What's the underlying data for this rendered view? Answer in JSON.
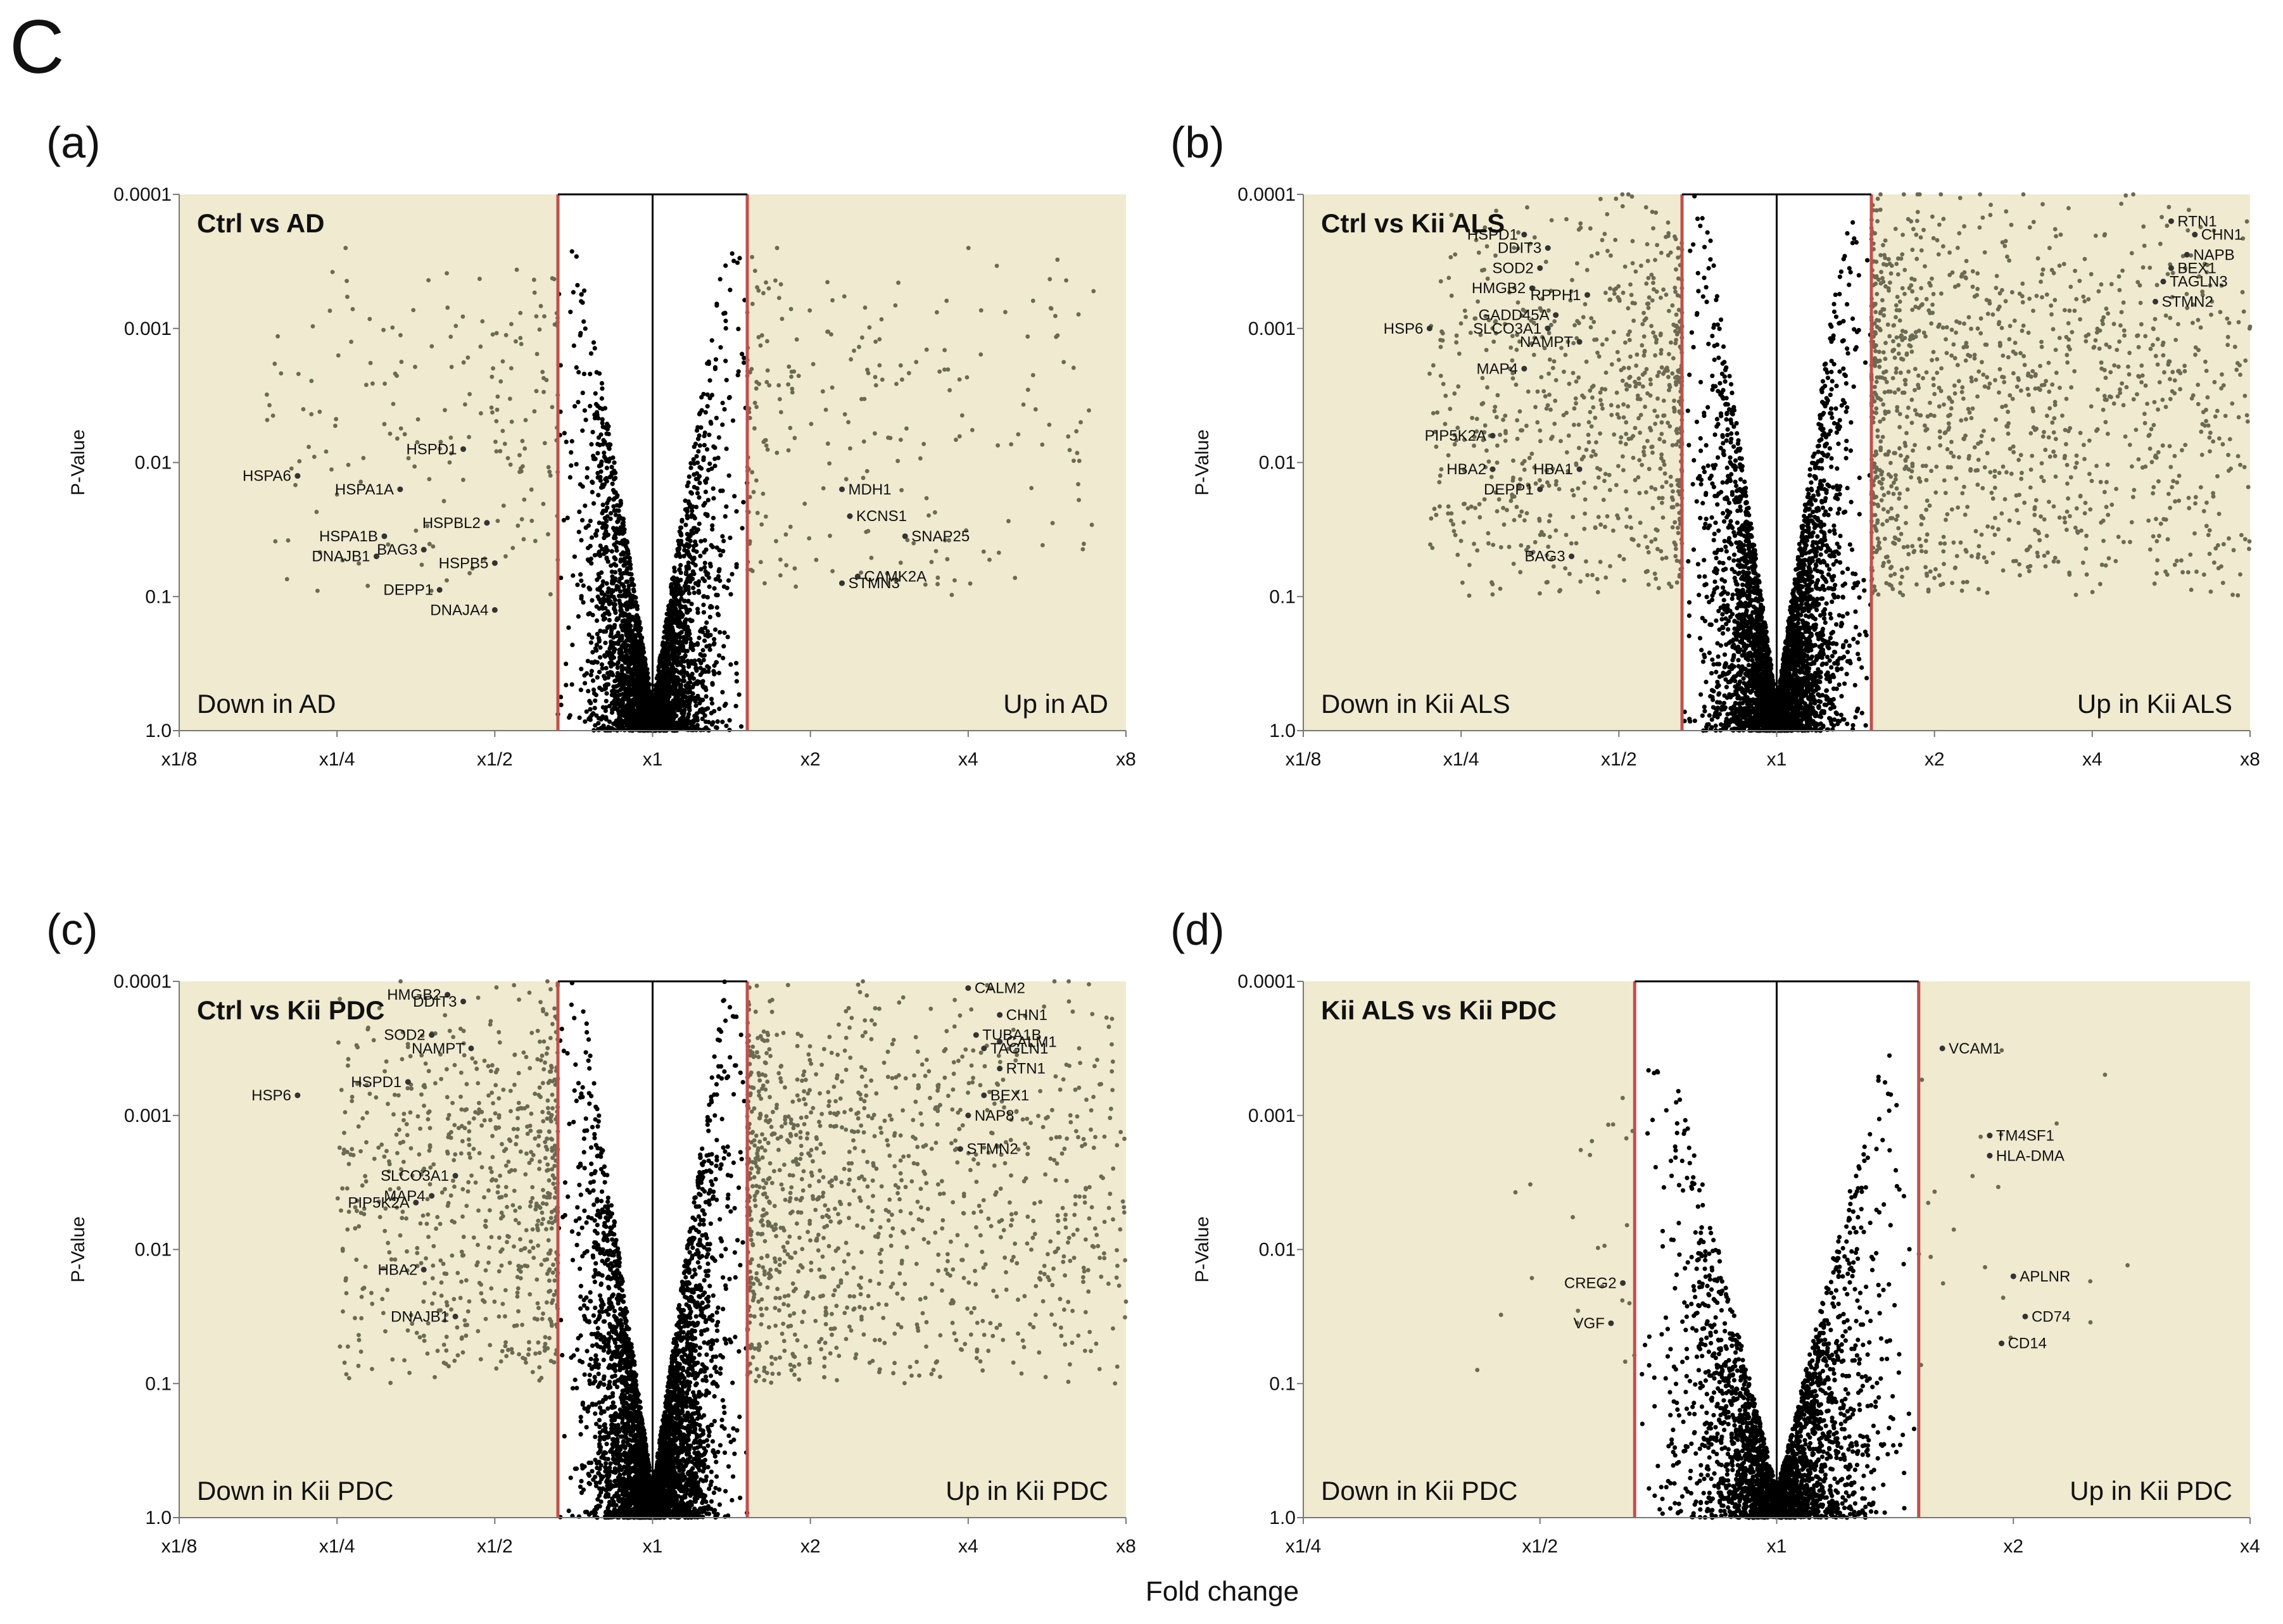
{
  "figure_label": "C",
  "x_label": "Fold change",
  "chart_data": [
    {
      "type": "scatter",
      "panel": "(a)",
      "title": "Ctrl vs AD",
      "xlabel": "Fold change",
      "ylabel": "P-Value",
      "x_scale": "log2",
      "y_scale": "log10 reversed",
      "xlim_log2": [
        -3,
        3
      ],
      "x_ticks": [
        {
          "v": -3,
          "label": "x1/8"
        },
        {
          "v": -2,
          "label": "x1/4"
        },
        {
          "v": -1,
          "label": "x1/2"
        },
        {
          "v": 0,
          "label": "x1"
        },
        {
          "v": 1,
          "label": "x2"
        },
        {
          "v": 2,
          "label": "x4"
        },
        {
          "v": 3,
          "label": "x8"
        }
      ],
      "y_ticks": [
        {
          "v": 0,
          "label": "1.0"
        },
        {
          "v": 1,
          "label": "0.1"
        },
        {
          "v": 2,
          "label": "0.01"
        },
        {
          "v": 3,
          "label": "0.001"
        },
        {
          "v": 4,
          "label": "0.0001"
        }
      ],
      "thresholds_log2": [
        -0.6,
        0.6
      ],
      "down_label": "Down in AD",
      "up_label": "Up in AD",
      "cloud": {
        "n_inner": 3200,
        "n_outer": 420,
        "spread_left": 1.9,
        "spread_right": 2.2,
        "max_y": 3.6
      },
      "annotations": [
        {
          "gene": "HSPA6",
          "x": -2.25,
          "y": 1.9
        },
        {
          "gene": "HSPD1",
          "x": -1.2,
          "y": 2.1
        },
        {
          "gene": "HSPA1A",
          "x": -1.6,
          "y": 1.8
        },
        {
          "gene": "HSPBL2",
          "x": -1.05,
          "y": 1.55
        },
        {
          "gene": "HSPA1B",
          "x": -1.7,
          "y": 1.45
        },
        {
          "gene": "DNAJB1",
          "x": -1.75,
          "y": 1.3
        },
        {
          "gene": "BAG3",
          "x": -1.45,
          "y": 1.35
        },
        {
          "gene": "HSPB5",
          "x": -1.0,
          "y": 1.25
        },
        {
          "gene": "DEPP1",
          "x": -1.35,
          "y": 1.05
        },
        {
          "gene": "DNAJA4",
          "x": -1.0,
          "y": 0.9
        },
        {
          "gene": "MDH1",
          "x": 1.2,
          "y": 1.8
        },
        {
          "gene": "KCNS1",
          "x": 1.25,
          "y": 1.6
        },
        {
          "gene": "SNAP25",
          "x": 1.6,
          "y": 1.45
        },
        {
          "gene": "CAMK2A",
          "x": 1.3,
          "y": 1.15
        },
        {
          "gene": "STMN3",
          "x": 1.2,
          "y": 1.1
        }
      ]
    },
    {
      "type": "scatter",
      "panel": "(b)",
      "title": "Ctrl vs Kii ALS",
      "xlabel": "Fold change",
      "ylabel": "P-Value",
      "x_scale": "log2",
      "y_scale": "log10 reversed",
      "xlim_log2": [
        -3,
        3
      ],
      "x_ticks": [
        {
          "v": -3,
          "label": "x1/8"
        },
        {
          "v": -2,
          "label": "x1/4"
        },
        {
          "v": -1,
          "label": "x1/2"
        },
        {
          "v": 0,
          "label": "x1"
        },
        {
          "v": 1,
          "label": "x2"
        },
        {
          "v": 2,
          "label": "x4"
        },
        {
          "v": 3,
          "label": "x8"
        }
      ],
      "y_ticks": [
        {
          "v": 0,
          "label": "1.0"
        },
        {
          "v": 1,
          "label": "0.1"
        },
        {
          "v": 2,
          "label": "0.01"
        },
        {
          "v": 3,
          "label": "0.001"
        },
        {
          "v": 4,
          "label": "0.0001"
        }
      ],
      "thresholds_log2": [
        -0.6,
        0.6
      ],
      "down_label": "Down in Kii ALS",
      "up_label": "Up in Kii ALS",
      "cloud": {
        "n_inner": 3800,
        "n_outer": 2100,
        "spread_left": 1.6,
        "spread_right": 2.7,
        "max_y": 4.0
      },
      "annotations": [
        {
          "gene": "HSPD1",
          "x": -1.6,
          "y": 3.7
        },
        {
          "gene": "DDIT3",
          "x": -1.45,
          "y": 3.6
        },
        {
          "gene": "SOD2",
          "x": -1.5,
          "y": 3.45
        },
        {
          "gene": "HMGB2",
          "x": -1.55,
          "y": 3.3
        },
        {
          "gene": "RPPH1",
          "x": -1.2,
          "y": 3.25
        },
        {
          "gene": "GADD45A",
          "x": -1.4,
          "y": 3.1
        },
        {
          "gene": "HSP6",
          "x": -2.2,
          "y": 3.0
        },
        {
          "gene": "SLCO3A1",
          "x": -1.45,
          "y": 3.0
        },
        {
          "gene": "NAMPT",
          "x": -1.25,
          "y": 2.9
        },
        {
          "gene": "MAP4",
          "x": -1.6,
          "y": 2.7
        },
        {
          "gene": "PIP5K2A",
          "x": -1.8,
          "y": 2.2
        },
        {
          "gene": "HBA2",
          "x": -1.8,
          "y": 1.95
        },
        {
          "gene": "HBA1",
          "x": -1.25,
          "y": 1.95
        },
        {
          "gene": "DEPP1",
          "x": -1.5,
          "y": 1.8
        },
        {
          "gene": "BAG3",
          "x": -1.3,
          "y": 1.3
        },
        {
          "gene": "RTN1",
          "x": 2.5,
          "y": 3.8
        },
        {
          "gene": "CHN1",
          "x": 2.65,
          "y": 3.7
        },
        {
          "gene": "NAPB",
          "x": 2.6,
          "y": 3.55
        },
        {
          "gene": "BEX1",
          "x": 2.5,
          "y": 3.45
        },
        {
          "gene": "TAGLN3",
          "x": 2.45,
          "y": 3.35
        },
        {
          "gene": "STMN2",
          "x": 2.4,
          "y": 3.2
        }
      ]
    },
    {
      "type": "scatter",
      "panel": "(c)",
      "title": "Ctrl vs Kii PDC",
      "xlabel": "Fold change",
      "ylabel": "P-Value",
      "x_scale": "log2",
      "y_scale": "log10 reversed",
      "xlim_log2": [
        -3,
        3
      ],
      "x_ticks": [
        {
          "v": -3,
          "label": "x1/8"
        },
        {
          "v": -2,
          "label": "x1/4"
        },
        {
          "v": -1,
          "label": "x1/2"
        },
        {
          "v": 0,
          "label": "x1"
        },
        {
          "v": 1,
          "label": "x2"
        },
        {
          "v": 2,
          "label": "x4"
        },
        {
          "v": 3,
          "label": "x8"
        }
      ],
      "y_ticks": [
        {
          "v": 0,
          "label": "1.0"
        },
        {
          "v": 1,
          "label": "0.1"
        },
        {
          "v": 2,
          "label": "0.01"
        },
        {
          "v": 3,
          "label": "0.001"
        },
        {
          "v": 4,
          "label": "0.0001"
        }
      ],
      "thresholds_log2": [
        -0.6,
        0.6
      ],
      "down_label": "Down in Kii PDC",
      "up_label": "Up in Kii PDC",
      "cloud": {
        "n_inner": 4200,
        "n_outer": 1900,
        "spread_left": 1.4,
        "spread_right": 2.5,
        "max_y": 4.0
      },
      "annotations": [
        {
          "gene": "HMGB2",
          "x": -1.3,
          "y": 3.9
        },
        {
          "gene": "DDIT3",
          "x": -1.2,
          "y": 3.85
        },
        {
          "gene": "SOD2",
          "x": -1.4,
          "y": 3.6
        },
        {
          "gene": "NAMPT",
          "x": -1.15,
          "y": 3.5
        },
        {
          "gene": "HSPD1",
          "x": -1.55,
          "y": 3.25
        },
        {
          "gene": "HSP6",
          "x": -2.25,
          "y": 3.15
        },
        {
          "gene": "SLCO3A1",
          "x": -1.25,
          "y": 2.55
        },
        {
          "gene": "MAP4",
          "x": -1.4,
          "y": 2.4
        },
        {
          "gene": "PIP5K2A",
          "x": -1.5,
          "y": 2.35
        },
        {
          "gene": "HBA2",
          "x": -1.45,
          "y": 1.85
        },
        {
          "gene": "DNAJB1",
          "x": -1.25,
          "y": 1.5
        },
        {
          "gene": "CALM2",
          "x": 2.0,
          "y": 3.95
        },
        {
          "gene": "CHN1",
          "x": 2.2,
          "y": 3.75
        },
        {
          "gene": "TUBA1B",
          "x": 2.05,
          "y": 3.6
        },
        {
          "gene": "CALM1",
          "x": 2.2,
          "y": 3.55
        },
        {
          "gene": "TAGLN1",
          "x": 2.1,
          "y": 3.5
        },
        {
          "gene": "RTN1",
          "x": 2.2,
          "y": 3.35
        },
        {
          "gene": "BEX1",
          "x": 2.1,
          "y": 3.15
        },
        {
          "gene": "NAP8",
          "x": 2.0,
          "y": 3.0
        },
        {
          "gene": "STMN2",
          "x": 1.95,
          "y": 2.75
        }
      ]
    },
    {
      "type": "scatter",
      "panel": "(d)",
      "title": "Kii ALS vs Kii PDC",
      "xlabel": "Fold change",
      "ylabel": "P-Value",
      "x_scale": "log2",
      "y_scale": "log10 reversed",
      "xlim_log2": [
        -2,
        2
      ],
      "x_ticks": [
        {
          "v": -2,
          "label": "x1/4"
        },
        {
          "v": -1,
          "label": "x1/2"
        },
        {
          "v": 0,
          "label": "x1"
        },
        {
          "v": 1,
          "label": "x2"
        },
        {
          "v": 2,
          "label": "x4"
        }
      ],
      "y_ticks": [
        {
          "v": 0,
          "label": "1.0"
        },
        {
          "v": 1,
          "label": "0.1"
        },
        {
          "v": 2,
          "label": "0.01"
        },
        {
          "v": 3,
          "label": "0.001"
        },
        {
          "v": 4,
          "label": "0.0001"
        }
      ],
      "thresholds_log2": [
        -0.6,
        0.6
      ],
      "down_label": "Down in Kii PDC",
      "up_label": "Up in Kii PDC",
      "cloud": {
        "n_inner": 2600,
        "n_outer": 45,
        "spread_left": 0.7,
        "spread_right": 0.9,
        "max_y": 3.5
      },
      "annotations": [
        {
          "gene": "CREG2",
          "x": -0.65,
          "y": 1.75
        },
        {
          "gene": "VGF",
          "x": -0.7,
          "y": 1.45
        },
        {
          "gene": "VCAM1",
          "x": 0.7,
          "y": 3.5
        },
        {
          "gene": "TM4SF1",
          "x": 0.9,
          "y": 2.85
        },
        {
          "gene": "HLA-DMA",
          "x": 0.9,
          "y": 2.7
        },
        {
          "gene": "APLNR",
          "x": 1.0,
          "y": 1.8
        },
        {
          "gene": "CD74",
          "x": 1.05,
          "y": 1.5
        },
        {
          "gene": "CD14",
          "x": 0.95,
          "y": 1.3
        }
      ]
    }
  ]
}
